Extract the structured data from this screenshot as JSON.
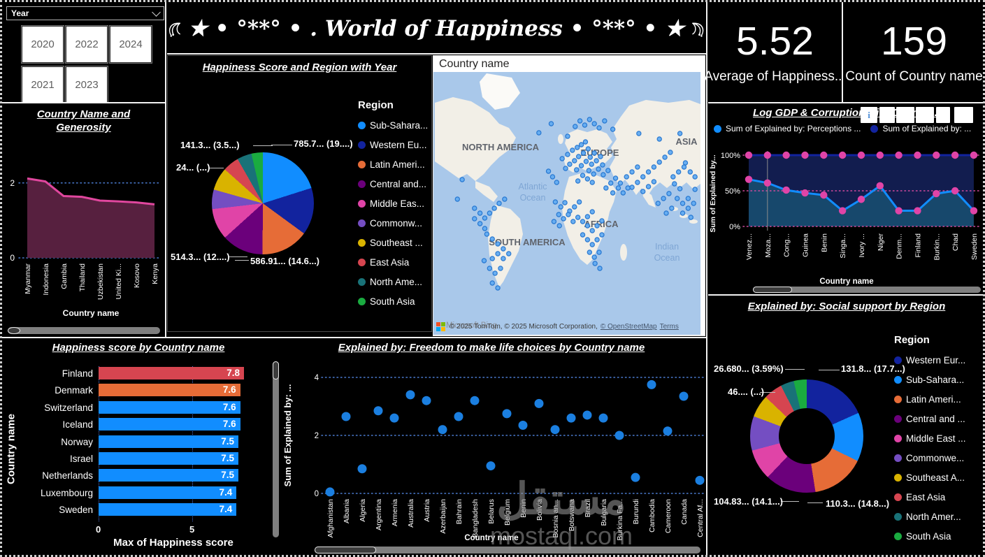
{
  "palette": {
    "blue": "#118DFF",
    "dark_blue": "#12239E",
    "orange": "#E66C37",
    "dark_purple": "#6B007B",
    "pink": "#E044A7",
    "light_purple": "#744EC2",
    "gold": "#D9B300",
    "red": "#D64550",
    "teal": "#197278",
    "green": "#1AAB40",
    "marker_pink": "#E044A7",
    "scatter_dot": "#1B7FE0",
    "grid_blue": "#4a7bd0",
    "grid_pink": "#D24A9E",
    "area_line": "#E0479E",
    "area_fill": "#57203F",
    "loggdp_fill_lower": "#17486C",
    "loggdp_fill_upper": "#121D4F",
    "map_ocean": "#A9C8EA",
    "map_land": "#F2EFE7",
    "map_dot_fill": "#63ACF2",
    "map_dot_stroke": "#2173CF",
    "ms_logo": [
      "#F25022",
      "#7FBA00",
      "#00A4EF",
      "#FFB900"
    ]
  },
  "filters": {
    "label": "Year",
    "years": [
      "2020",
      "2022",
      "2024",
      "2021",
      "2023"
    ]
  },
  "banner": {
    "title": "★ • °**° • . World of Happiness • °**° • ★"
  },
  "kpi": {
    "average_value": "5.52",
    "average_label": "Average of Happiness...",
    "count_value": "159",
    "count_label": "Count of Country name"
  },
  "header_icons": {
    "info": "i"
  },
  "map_attribution": {
    "bing": "Microsoft Bing",
    "text": "© 2025 TomTom, © 2025 Microsoft Corporation,",
    "osm": "© OpenStreetMap",
    "terms": "Terms"
  },
  "watermark": {
    "word": "مستقل",
    "domain": "mostaql.com"
  },
  "chart_data": [
    {
      "id": "generosity",
      "type": "area",
      "title": "Country Name and Generosity",
      "xlabel": "Country name",
      "yticks": [
        "2",
        "0"
      ],
      "ylim": [
        0,
        2.6
      ],
      "categories": [
        "Myanmar",
        "Indonesia",
        "Gambia",
        "Thailand",
        "Uzbekistan",
        "United Ki...",
        "Kosovo",
        "Kenya"
      ],
      "values": [
        2.12,
        2.04,
        1.65,
        1.63,
        1.53,
        1.51,
        1.48,
        1.43
      ]
    },
    {
      "id": "pie",
      "type": "pie",
      "title": "Happiness Score and Region with Year",
      "legend_title": "Region",
      "series": [
        {
          "label": "Sub-Sahara...",
          "value": 19.5,
          "color": "#118DFF"
        },
        {
          "label": "Western Eu...",
          "value": 14.5,
          "color": "#12239E"
        },
        {
          "label": "Latin Ameri...",
          "value": 14.6,
          "color": "#E66C37"
        },
        {
          "label": "Central and...",
          "value": 12.8,
          "color": "#6B007B"
        },
        {
          "label": "Middle Eas...",
          "value": 9.6,
          "color": "#E044A7"
        },
        {
          "label": "Commonw...",
          "value": 6.0,
          "color": "#744EC2"
        },
        {
          "label": "Southeast ...",
          "value": 7.0,
          "color": "#D9B300"
        },
        {
          "label": "East Asia",
          "value": 5.0,
          "color": "#D64550"
        },
        {
          "label": "North Ame...",
          "value": 4.5,
          "color": "#197278"
        },
        {
          "label": "South Asia",
          "value": 3.5,
          "color": "#1AAB40"
        }
      ],
      "callouts": {
        "top_right": "785.7... (19....)",
        "bottom_right": "586.91... (14.6...)",
        "bottom_left": "514.3... (12....)",
        "left": "24... (...)",
        "top_left": "141.3... (3.5...)"
      }
    },
    {
      "id": "map",
      "type": "map",
      "header": "Country name",
      "labels": {
        "north_america": "NORTH AMERICA",
        "europe": "EUROPE",
        "asia": "ASIA",
        "africa": "AFRICA",
        "south_america": "SOUTH AMERICA",
        "atlantic_1": "Atlantic",
        "atlantic_2": "Ocean",
        "indian_1": "Indian",
        "indian_2": "Ocean"
      },
      "dots": [
        [
          188,
          124
        ],
        [
          196,
          118
        ],
        [
          203,
          112
        ],
        [
          210,
          108
        ],
        [
          216,
          104
        ],
        [
          222,
          100
        ],
        [
          226,
          110
        ],
        [
          219,
          116
        ],
        [
          212,
          121
        ],
        [
          206,
          127
        ],
        [
          199,
          132
        ],
        [
          193,
          138
        ],
        [
          209,
          140
        ],
        [
          216,
          134
        ],
        [
          223,
          128
        ],
        [
          229,
          122
        ],
        [
          235,
          116
        ],
        [
          231,
          132
        ],
        [
          238,
          127
        ],
        [
          244,
          121
        ],
        [
          227,
          141
        ],
        [
          234,
          146
        ],
        [
          241,
          139
        ],
        [
          247,
          133
        ],
        [
          218,
          148
        ],
        [
          225,
          153
        ],
        [
          248,
          147
        ],
        [
          255,
          141
        ],
        [
          211,
          156
        ],
        [
          232,
          158
        ],
        [
          154,
          87
        ],
        [
          172,
          74
        ],
        [
          196,
          92
        ],
        [
          207,
          78
        ],
        [
          214,
          70
        ],
        [
          221,
          76
        ],
        [
          228,
          68
        ],
        [
          235,
          74
        ],
        [
          242,
          80
        ],
        [
          250,
          70
        ],
        [
          262,
          82
        ],
        [
          300,
          88
        ],
        [
          330,
          96
        ],
        [
          360,
          88
        ],
        [
          174,
          150
        ],
        [
          180,
          158
        ],
        [
          168,
          142
        ],
        [
          252,
          166
        ],
        [
          259,
          159
        ],
        [
          266,
          152
        ],
        [
          273,
          159
        ],
        [
          262,
          173
        ],
        [
          270,
          166
        ],
        [
          277,
          173
        ],
        [
          284,
          166
        ],
        [
          178,
          186
        ],
        [
          186,
          193
        ],
        [
          192,
          187
        ],
        [
          199,
          199
        ],
        [
          206,
          193
        ],
        [
          213,
          186
        ],
        [
          183,
          204
        ],
        [
          190,
          210
        ],
        [
          197,
          204
        ],
        [
          176,
          214
        ],
        [
          184,
          220
        ],
        [
          204,
          214
        ],
        [
          211,
          208
        ],
        [
          218,
          214
        ],
        [
          225,
          207
        ],
        [
          232,
          200
        ],
        [
          225,
          220
        ],
        [
          232,
          227
        ],
        [
          239,
          220
        ],
        [
          246,
          213
        ],
        [
          218,
          233
        ],
        [
          225,
          240
        ],
        [
          232,
          247
        ],
        [
          239,
          240
        ],
        [
          246,
          233
        ],
        [
          228,
          258
        ],
        [
          235,
          265
        ],
        [
          242,
          258
        ],
        [
          236,
          274
        ],
        [
          243,
          281
        ],
        [
          282,
          150
        ],
        [
          290,
          143
        ],
        [
          298,
          136
        ],
        [
          306,
          150
        ],
        [
          314,
          143
        ],
        [
          322,
          136
        ],
        [
          330,
          129
        ],
        [
          338,
          122
        ],
        [
          346,
          115
        ],
        [
          290,
          165
        ],
        [
          298,
          158
        ],
        [
          306,
          171
        ],
        [
          314,
          164
        ],
        [
          322,
          157
        ],
        [
          350,
          150
        ],
        [
          358,
          143
        ],
        [
          366,
          136
        ],
        [
          352,
          160
        ],
        [
          360,
          167
        ],
        [
          344,
          174
        ],
        [
          336,
          181
        ],
        [
          328,
          188
        ],
        [
          356,
          181
        ],
        [
          364,
          188
        ],
        [
          372,
          181
        ],
        [
          348,
          195
        ],
        [
          340,
          202
        ],
        [
          364,
          202
        ],
        [
          372,
          195
        ],
        [
          380,
          188
        ],
        [
          382,
          150
        ],
        [
          375,
          143
        ],
        [
          368,
          130
        ],
        [
          382,
          168
        ],
        [
          376,
          208
        ],
        [
          42,
          154
        ],
        [
          35,
          182
        ],
        [
          60,
          195
        ],
        [
          68,
          202
        ],
        [
          75,
          209
        ],
        [
          82,
          202
        ],
        [
          89,
          195
        ],
        [
          60,
          210
        ],
        [
          68,
          217
        ],
        [
          75,
          224
        ],
        [
          96,
          188
        ],
        [
          104,
          182
        ],
        [
          78,
          232
        ],
        [
          86,
          239
        ],
        [
          94,
          246
        ],
        [
          102,
          253
        ],
        [
          94,
          260
        ],
        [
          86,
          267
        ],
        [
          102,
          267
        ],
        [
          110,
          260
        ],
        [
          82,
          281
        ],
        [
          90,
          288
        ],
        [
          98,
          281
        ],
        [
          86,
          302
        ],
        [
          94,
          309
        ],
        [
          74,
          270
        ]
      ]
    },
    {
      "id": "loggdp",
      "type": "line",
      "title": "Log GDP & Corruption with Country...",
      "ylabel": "Sum of Explained by...",
      "xlabel": "Country name",
      "yticks": [
        "100%",
        "50%",
        "0%"
      ],
      "categories": [
        "Venez...",
        "Moza...",
        "Cong...",
        "Guinea",
        "Benin",
        "Singa...",
        "Ivory ...",
        "Niger",
        "Denm...",
        "Finland",
        "Burkin...",
        "Chad",
        "Sweden"
      ],
      "series": [
        {
          "name": "Sum of Explained by: Perceptions ...",
          "color": "#118DFF",
          "values": [
            66,
            61,
            51,
            47,
            44,
            22,
            38,
            57,
            22,
            22,
            46,
            50,
            22
          ]
        },
        {
          "name": "Sum of Explained by: ...",
          "color": "#12239E",
          "values": [
            100,
            100,
            100,
            100,
            100,
            100,
            100,
            100,
            100,
            100,
            100,
            100,
            100
          ]
        }
      ]
    },
    {
      "id": "donut",
      "type": "donut",
      "title": "Explained by: Social support by Region",
      "legend_title": "Region",
      "series": [
        {
          "label": "Western Eur...",
          "value": 17.7,
          "color": "#12239E"
        },
        {
          "label": "Sub-Sahara...",
          "value": 13.5,
          "color": "#118DFF"
        },
        {
          "label": "Latin Ameri...",
          "value": 14.8,
          "color": "#E66C37"
        },
        {
          "label": "Central and ...",
          "value": 14.1,
          "color": "#6B007B"
        },
        {
          "label": "Middle East ...",
          "value": 8.5,
          "color": "#E044A7"
        },
        {
          "label": "Commonwe...",
          "value": 9.5,
          "color": "#744EC2"
        },
        {
          "label": "Southeast A...",
          "value": 6.2,
          "color": "#D9B300"
        },
        {
          "label": "East Asia",
          "value": 5.2,
          "color": "#D64550"
        },
        {
          "label": "North Amer...",
          "value": 3.7,
          "color": "#197278"
        },
        {
          "label": "South Asia",
          "value": 3.59,
          "color": "#1AAB40"
        }
      ],
      "callouts": {
        "top_right": "131.8... (17.7...)",
        "top_left": "26.680... (3.59%)",
        "left": "46.... (...)",
        "bottom_left": "104.83... (14.1...)",
        "bottom_right": "110.3... (14.8...)"
      }
    },
    {
      "id": "bar",
      "type": "bar",
      "title": "Happiness score by Country name",
      "xlabel": "Max of Happiness score",
      "ylabel": "Country name",
      "xticks": [
        "0",
        "5"
      ],
      "xlim": [
        0,
        7.8
      ],
      "categories": [
        "Finland",
        "Denmark",
        "Switzerland",
        "Iceland",
        "Norway",
        "Israel",
        "Netherlands",
        "Luxembourg",
        "Sweden"
      ],
      "values": [
        7.8,
        7.6,
        7.6,
        7.6,
        7.5,
        7.5,
        7.5,
        7.4,
        7.4
      ],
      "labels": [
        "7.8",
        "7.6",
        "7.6",
        "7.6",
        "7.5",
        "7.5",
        "7.5",
        "7.4",
        "7.4"
      ],
      "colors": [
        "#D64550",
        "#E66C37",
        "#118DFF",
        "#118DFF",
        "#118DFF",
        "#118DFF",
        "#118DFF",
        "#118DFF",
        "#118DFF"
      ]
    },
    {
      "id": "scatter",
      "type": "scatter",
      "title": "Explained by: Freedom to make life choices by Country name",
      "ylabel": "Sum of Explained by: ...",
      "xlabel": "Country name",
      "yticks": [
        "4",
        "2",
        "0"
      ],
      "ylim": [
        0,
        4
      ],
      "categories": [
        "Afghanistan",
        "Albania",
        "Algeria",
        "Argentina",
        "Armenia",
        "Australia",
        "Austria",
        "Azerbaijan",
        "Bahrain",
        "Bangladesh",
        "Belarus",
        "Belgium",
        "Benin",
        "Bolivia",
        "Bosnia an...",
        "Botswana",
        "Brazil",
        "Bulgaria",
        "Burkina Fa...",
        "Burundi",
        "Cambodia",
        "Cameroon",
        "Canada",
        "Central Af..."
      ],
      "values": [
        0.05,
        2.65,
        0.85,
        2.85,
        2.6,
        3.4,
        3.2,
        2.2,
        2.65,
        3.2,
        0.95,
        2.75,
        2.35,
        3.1,
        2.2,
        2.6,
        2.7,
        2.6,
        2.0,
        0.55,
        3.75,
        2.15,
        3.35,
        0.45
      ]
    }
  ]
}
